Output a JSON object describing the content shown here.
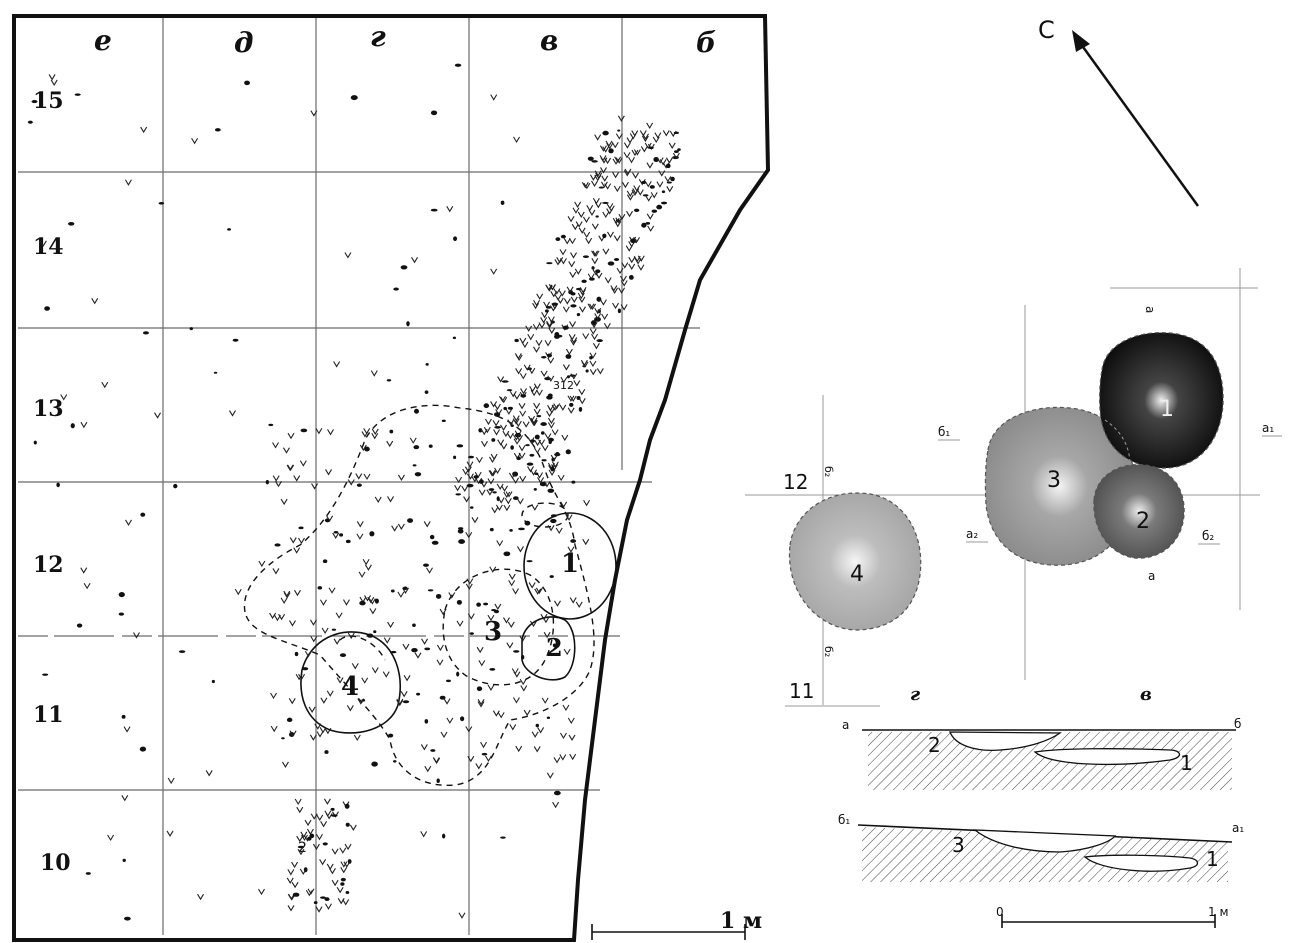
{
  "plan": {
    "column_letters": [
      "е",
      "д",
      "г",
      "в",
      "б"
    ],
    "row_numbers": [
      "15",
      "14",
      "13",
      "12",
      "11",
      "10"
    ],
    "feature_numbers": [
      "1",
      "2",
      "3",
      "4"
    ],
    "small_note_2": "2",
    "small_note_312": "312",
    "scale_label": "1 м"
  },
  "north_arrow": {
    "label": "С"
  },
  "pits_plan": {
    "pit_numbers": [
      "1",
      "2",
      "3",
      "4"
    ],
    "row_labels": [
      "12",
      "11"
    ],
    "col_labels": [
      "г",
      "в"
    ],
    "section_marks": {
      "a": "а",
      "a1": "а₁",
      "a2": "а₂",
      "b": "б",
      "b1": "б₁",
      "b2": "б₂"
    }
  },
  "sections": {
    "top": {
      "left_mark": "а",
      "right_mark": "б",
      "pit_left": "2",
      "pit_right": "1"
    },
    "bottom": {
      "left_mark": "б₁",
      "right_mark": "а₁",
      "pit_left": "3",
      "pit_right": "1"
    },
    "scale": {
      "start": "0",
      "end": "1 м"
    }
  },
  "colors": {
    "ink": "#111111",
    "pit1": "#1a1a1a",
    "pit2": "#6b6b6b",
    "pit3": "#9c9c9c",
    "pit4": "#b3b3b3"
  }
}
